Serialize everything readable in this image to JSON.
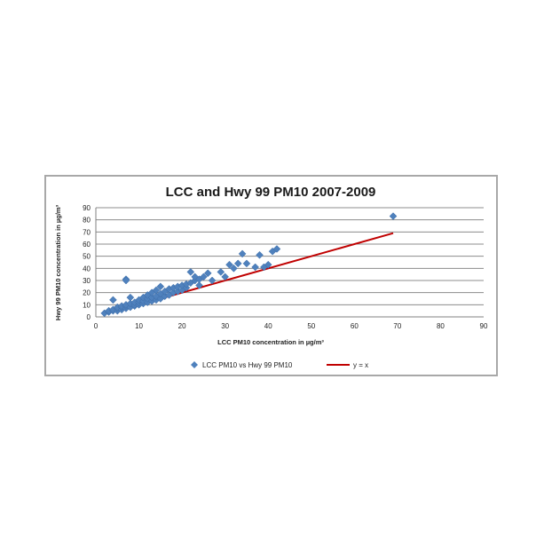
{
  "chart_data": {
    "type": "scatter",
    "title": "LCC and Hwy 99 PM10 2007-2009",
    "xlabel": "LCC PM10 concentration in µg/m³",
    "ylabel": "Hwy 99 PM10 concentration in µg/m³",
    "xlim": [
      0,
      90
    ],
    "ylim": [
      0,
      90
    ],
    "xticks": [
      0,
      10,
      20,
      30,
      40,
      50,
      60,
      70,
      80,
      90
    ],
    "yticks": [
      0,
      10,
      20,
      30,
      40,
      50,
      60,
      70,
      80,
      90
    ],
    "grid": "horizontal",
    "legend_position": "bottom",
    "series": [
      {
        "name": "LCC PM10 vs Hwy 99 PM10",
        "kind": "scatter",
        "color": "#4f81bd",
        "marker": "diamond",
        "points": [
          [
            2,
            3
          ],
          [
            3,
            4
          ],
          [
            3,
            5
          ],
          [
            4,
            5
          ],
          [
            4,
            6
          ],
          [
            4,
            14
          ],
          [
            5,
            5
          ],
          [
            5,
            7
          ],
          [
            5,
            8
          ],
          [
            6,
            6
          ],
          [
            6,
            8
          ],
          [
            6,
            9
          ],
          [
            7,
            7
          ],
          [
            7,
            9
          ],
          [
            7,
            10
          ],
          [
            7,
            31
          ],
          [
            7,
            30
          ],
          [
            8,
            8
          ],
          [
            8,
            11
          ],
          [
            8,
            16
          ],
          [
            9,
            9
          ],
          [
            9,
            10
          ],
          [
            9,
            12
          ],
          [
            10,
            10
          ],
          [
            10,
            12
          ],
          [
            10,
            14
          ],
          [
            11,
            11
          ],
          [
            11,
            13
          ],
          [
            11,
            16
          ],
          [
            12,
            12
          ],
          [
            12,
            15
          ],
          [
            12,
            18
          ],
          [
            13,
            13
          ],
          [
            13,
            16
          ],
          [
            13,
            20
          ],
          [
            14,
            14
          ],
          [
            14,
            17
          ],
          [
            14,
            22
          ],
          [
            15,
            15
          ],
          [
            15,
            19
          ],
          [
            15,
            25
          ],
          [
            16,
            17
          ],
          [
            16,
            21
          ],
          [
            17,
            18
          ],
          [
            17,
            23
          ],
          [
            18,
            20
          ],
          [
            18,
            24
          ],
          [
            19,
            21
          ],
          [
            19,
            25
          ],
          [
            20,
            22
          ],
          [
            20,
            26
          ],
          [
            21,
            24
          ],
          [
            21,
            27
          ],
          [
            22,
            28
          ],
          [
            22,
            37
          ],
          [
            23,
            30
          ],
          [
            23,
            33
          ],
          [
            24,
            26
          ],
          [
            24,
            31
          ],
          [
            25,
            33
          ],
          [
            26,
            36
          ],
          [
            27,
            30
          ],
          [
            29,
            37
          ],
          [
            30,
            33
          ],
          [
            31,
            43
          ],
          [
            32,
            40
          ],
          [
            33,
            44
          ],
          [
            34,
            52
          ],
          [
            35,
            44
          ],
          [
            37,
            41
          ],
          [
            38,
            51
          ],
          [
            39,
            41
          ],
          [
            40,
            43
          ],
          [
            41,
            54
          ],
          [
            42,
            56
          ],
          [
            69,
            83
          ]
        ]
      },
      {
        "name": "y = x",
        "kind": "line",
        "color": "#c00000",
        "points": [
          [
            16,
            16
          ],
          [
            69,
            69
          ]
        ]
      }
    ]
  }
}
